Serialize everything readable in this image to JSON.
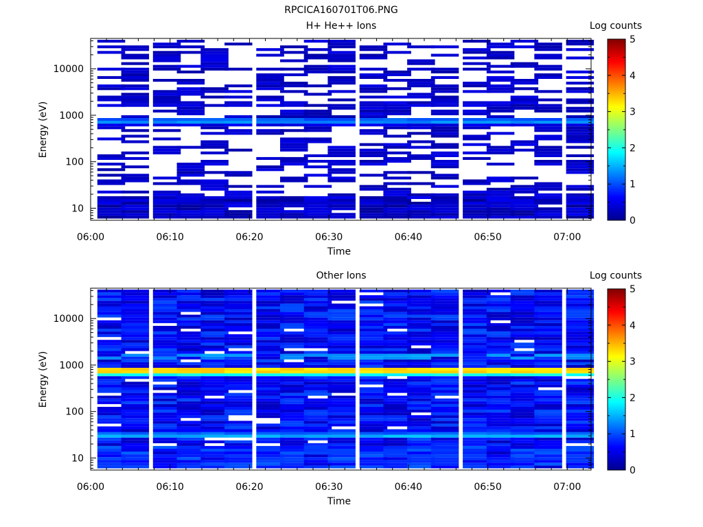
{
  "figure": {
    "title": "RPCICA160701T06.PNG"
  },
  "colorbar": {
    "label": "Log counts",
    "range": [
      0,
      5
    ],
    "ticks": [
      "0",
      "1",
      "2",
      "3",
      "4",
      "5"
    ],
    "colormap": [
      "#00008f",
      "#0000ff",
      "#0080ff",
      "#00ffff",
      "#80ff80",
      "#ffff00",
      "#ff8000",
      "#ff0000",
      "#800000"
    ]
  },
  "chart_data": [
    {
      "type": "heatmap",
      "title": "H+ He++ Ions",
      "xlabel": "Time",
      "ylabel": "Energy (eV)",
      "x_range": [
        "06:00",
        "07:03"
      ],
      "x_ticks": [
        "06:00",
        "06:10",
        "06:20",
        "06:30",
        "06:40",
        "06:50",
        "07:00"
      ],
      "y_scale": "log",
      "y_range": [
        5.5,
        45000
      ],
      "y_ticks": [
        "10",
        "100",
        "1000",
        "10000"
      ],
      "value_label": "Log counts",
      "value_range": [
        0,
        5
      ],
      "time_bins": [
        "06:00",
        "06:03",
        "06:07",
        "06:10",
        "06:13",
        "06:16",
        "06:20",
        "06:23",
        "06:26",
        "06:29",
        "06:33",
        "06:36",
        "06:39",
        "06:42",
        "06:46",
        "06:49",
        "06:52",
        "06:55",
        "06:59"
      ],
      "sparse": true,
      "occupancy": 0.45,
      "background": "none",
      "lines": [
        {
          "energy": 700,
          "level": 1.3,
          "continuous": true
        },
        {
          "energy": 780,
          "level": 1.05,
          "continuous": true
        },
        {
          "energy": 620,
          "level": 0.5,
          "continuous": true
        },
        {
          "energy": 1600,
          "level": 0.4,
          "continuous": false
        }
      ],
      "low_energy_fill": {
        "energy_max": 18,
        "level": 0.2
      }
    },
    {
      "type": "heatmap",
      "title": "Other Ions",
      "xlabel": "Time",
      "ylabel": "Energy (eV)",
      "x_range": [
        "06:00",
        "07:03"
      ],
      "x_ticks": [
        "06:00",
        "06:10",
        "06:20",
        "06:30",
        "06:40",
        "06:50",
        "07:00"
      ],
      "y_scale": "log",
      "y_range": [
        5.5,
        45000
      ],
      "y_ticks": [
        "10",
        "100",
        "1000",
        "10000"
      ],
      "value_label": "Log counts",
      "value_range": [
        0,
        5
      ],
      "time_bins": [
        "06:00",
        "06:03",
        "06:07",
        "06:10",
        "06:13",
        "06:16",
        "06:20",
        "06:23",
        "06:26",
        "06:29",
        "06:33",
        "06:36",
        "06:39",
        "06:42",
        "06:46",
        "06:49",
        "06:52",
        "06:55",
        "06:59"
      ],
      "sparse": false,
      "occupancy": 0.93,
      "background": "blue",
      "lines": [
        {
          "energy": 760,
          "level": 3.3,
          "continuous": true
        },
        {
          "energy": 700,
          "level": 2.7,
          "continuous": true
        },
        {
          "energy": 820,
          "level": 2.4,
          "continuous": true
        },
        {
          "energy": 650,
          "level": 1.9,
          "continuous": true
        },
        {
          "energy": 1500,
          "level": 1.35,
          "continuous": false
        },
        {
          "energy": 30,
          "level": 1.5,
          "continuous": true
        },
        {
          "energy": 35,
          "level": 1.1,
          "continuous": true
        }
      ],
      "low_energy_fill": {
        "energy_max": 18,
        "level": 0.75
      }
    }
  ]
}
